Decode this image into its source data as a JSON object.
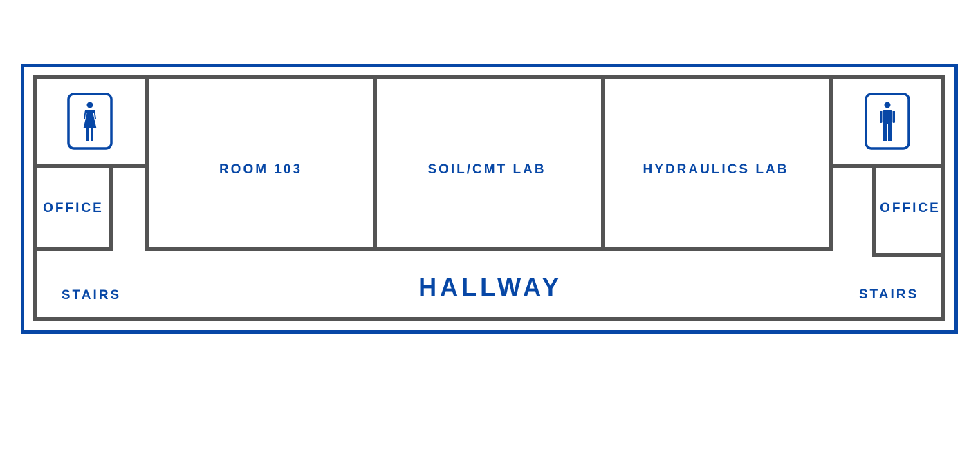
{
  "colors": {
    "accent": "#0747A6",
    "wall": "#545454",
    "background": "#FFFFFF"
  },
  "rooms": {
    "room_103": "ROOM 103",
    "soil_lab": "SOIL/CMT LAB",
    "hydraulics_lab": "HYDRAULICS LAB",
    "office_left": "OFFICE",
    "office_right": "OFFICE",
    "stairs_left": "STAIRS",
    "stairs_right": "STAIRS",
    "hallway": "HALLWAY"
  },
  "icons": {
    "restroom_left": "women-restroom-icon",
    "restroom_right": "men-restroom-icon"
  }
}
